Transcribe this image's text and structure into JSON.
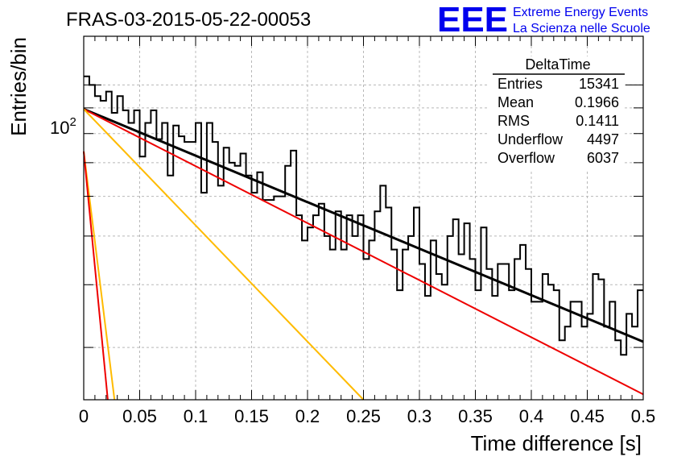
{
  "title": "FRAS-03-2015-05-22-00053",
  "logo": {
    "text": "EEE",
    "line1": "Extreme Energy Events",
    "line2": "La Scienza nelle Scuole",
    "color": "#0000ee"
  },
  "stats_box": {
    "title": "DeltaTime",
    "rows": [
      {
        "label": "Entries",
        "value": "15341"
      },
      {
        "label": "Mean",
        "value": "0.1966"
      },
      {
        "label": "RMS",
        "value": "0.1411"
      },
      {
        "label": "Underflow",
        "value": "4497"
      },
      {
        "label": "Overflow",
        "value": "6037"
      }
    ]
  },
  "chart_data": {
    "type": "histogram",
    "xlabel": "Time difference [s]",
    "ylabel": "Entries/bin",
    "xlim": [
      0,
      0.5
    ],
    "ylim": [
      23.6,
      125
    ],
    "yscale": "log",
    "grid": true,
    "x_tick_labels": [
      "0",
      "0.05",
      "0.1",
      "0.15",
      "0.2",
      "0.25",
      "0.3",
      "0.35",
      "0.4",
      "0.45",
      "0.5"
    ],
    "y_tick_label": "10^2",
    "bin_width": 0.005,
    "histogram_values": [
      104,
      100,
      95,
      93,
      97,
      88,
      95,
      89,
      84,
      89,
      72,
      84,
      89,
      78,
      84,
      66,
      83,
      79,
      77,
      77,
      84,
      61,
      84,
      77,
      63,
      75,
      70,
      69,
      73,
      66,
      61,
      67,
      59,
      59,
      60,
      60,
      69,
      74,
      55,
      49,
      52,
      55,
      58,
      50,
      47,
      56,
      47,
      55,
      50,
      55,
      45,
      49,
      56,
      63,
      57,
      47,
      39,
      47,
      50,
      57,
      44,
      38,
      49,
      42,
      40,
      50,
      54,
      46,
      53,
      45,
      39,
      52,
      43,
      38,
      44,
      44,
      39,
      45,
      48,
      43,
      37,
      37,
      42,
      40,
      39,
      31,
      33,
      37,
      37,
      33,
      35,
      42,
      41,
      33,
      37,
      31,
      29,
      35,
      33,
      39
    ],
    "series": [
      {
        "color": "#000000",
        "points": [
          [
            0,
            89.5
          ],
          [
            0.5,
            30.8
          ]
        ]
      },
      {
        "color": "#ee0000",
        "points": [
          [
            0,
            89.5
          ],
          [
            0.5,
            24.2
          ]
        ]
      },
      {
        "color": "#ffbb00",
        "points": [
          [
            0,
            89.5
          ],
          [
            0.25,
            23.6
          ]
        ]
      },
      {
        "color": "#ffbb00",
        "points": [
          [
            0,
            73.7
          ],
          [
            0.0275,
            23.6
          ]
        ]
      },
      {
        "color": "#ee0000",
        "points": [
          [
            0,
            73.7
          ],
          [
            0.0215,
            23.6
          ]
        ]
      }
    ]
  }
}
